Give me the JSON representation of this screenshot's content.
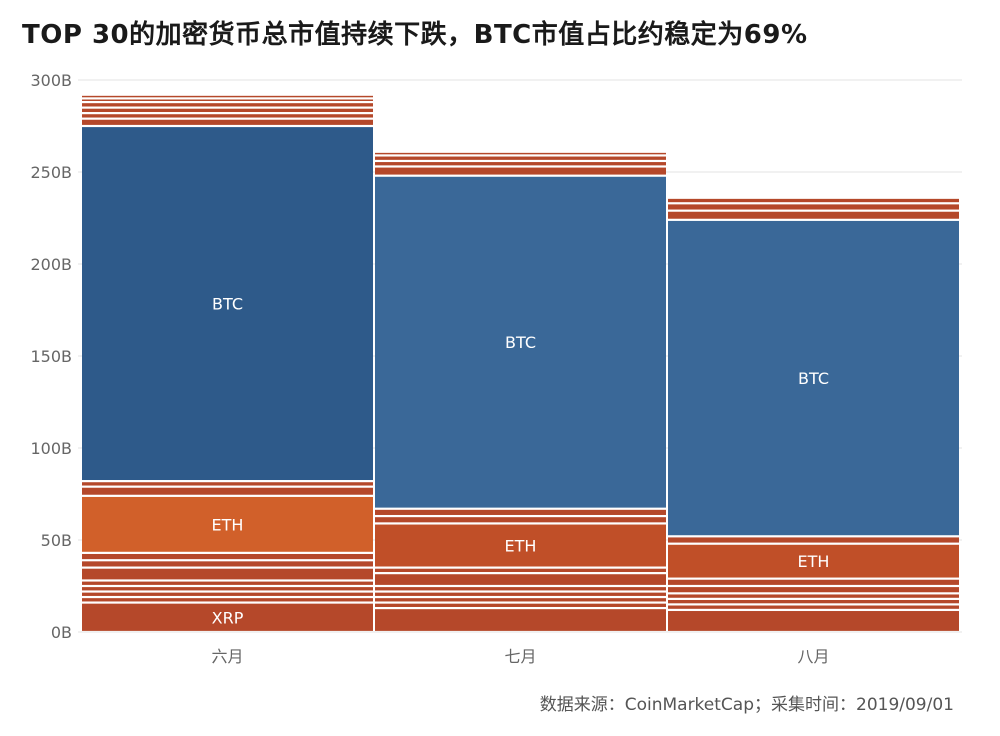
{
  "title": "TOP 30的加密货币总市值持续下跌，BTC市值占比约稳定为69%",
  "source": "数据来源：CoinMarketCap；采集时间：2019/09/01",
  "colors": {
    "btc_fill": "#2e5a8a",
    "eth_fill": "#d1602a",
    "other_fill": "#b5482a",
    "grid": "#e3e3e3",
    "axis_text": "#666666"
  },
  "chart_data": {
    "type": "bar",
    "subtype": "stacked-mekko",
    "yaxis": {
      "ticks": [
        "0B",
        "50B",
        "100B",
        "150B",
        "200B",
        "250B",
        "300B"
      ],
      "values": [
        0,
        50,
        100,
        150,
        200,
        250,
        300
      ],
      "ylim": [
        0,
        300
      ]
    },
    "categories": [
      "六月",
      "七月",
      "八月"
    ],
    "columns": [
      {
        "category": "六月",
        "total": 293,
        "btc_color": "#2e5a8a",
        "eth_color": "#d1602a",
        "segments": [
          {
            "name": "XRP",
            "value": 16,
            "label": "XRP",
            "kind": "other"
          },
          {
            "name": "",
            "value": 3,
            "kind": "other"
          },
          {
            "name": "",
            "value": 3,
            "kind": "other"
          },
          {
            "name": "",
            "value": 3,
            "kind": "other"
          },
          {
            "name": "",
            "value": 3,
            "kind": "other"
          },
          {
            "name": "",
            "value": 7,
            "kind": "other"
          },
          {
            "name": "",
            "value": 4,
            "kind": "other"
          },
          {
            "name": "",
            "value": 4,
            "kind": "other"
          },
          {
            "name": "ETH",
            "value": 31,
            "label": "ETH",
            "kind": "eth"
          },
          {
            "name": "",
            "value": 5,
            "kind": "other"
          },
          {
            "name": "",
            "value": 3,
            "kind": "other"
          },
          {
            "name": "BTC",
            "value": 193,
            "label": "BTC",
            "kind": "btc"
          },
          {
            "name": "",
            "value": 4,
            "kind": "other"
          },
          {
            "name": "",
            "value": 3,
            "kind": "other"
          },
          {
            "name": "",
            "value": 3,
            "kind": "other"
          },
          {
            "name": "",
            "value": 3,
            "kind": "other"
          },
          {
            "name": "",
            "value": 2,
            "kind": "other"
          },
          {
            "name": "",
            "value": 2,
            "kind": "other"
          }
        ]
      },
      {
        "category": "七月",
        "total": 261,
        "btc_color": "#3a6898",
        "eth_color": "#c04f28",
        "segments": [
          {
            "name": "",
            "value": 13,
            "kind": "other"
          },
          {
            "name": "",
            "value": 3,
            "kind": "other"
          },
          {
            "name": "",
            "value": 3,
            "kind": "other"
          },
          {
            "name": "",
            "value": 3,
            "kind": "other"
          },
          {
            "name": "",
            "value": 3,
            "kind": "other"
          },
          {
            "name": "",
            "value": 7,
            "kind": "other"
          },
          {
            "name": "",
            "value": 3,
            "kind": "other"
          },
          {
            "name": "ETH",
            "value": 24,
            "label": "ETH",
            "kind": "eth"
          },
          {
            "name": "",
            "value": 4,
            "kind": "other"
          },
          {
            "name": "",
            "value": 4,
            "kind": "other"
          },
          {
            "name": "BTC",
            "value": 181,
            "label": "BTC",
            "kind": "btc"
          },
          {
            "name": "",
            "value": 5,
            "kind": "other"
          },
          {
            "name": "",
            "value": 3,
            "kind": "other"
          },
          {
            "name": "",
            "value": 3,
            "kind": "other"
          },
          {
            "name": "",
            "value": 2,
            "kind": "other"
          }
        ]
      },
      {
        "category": "八月",
        "total": 236,
        "btc_color": "#3a6898",
        "eth_color": "#c04f28",
        "segments": [
          {
            "name": "",
            "value": 12,
            "kind": "other"
          },
          {
            "name": "",
            "value": 3,
            "kind": "other"
          },
          {
            "name": "",
            "value": 3,
            "kind": "other"
          },
          {
            "name": "",
            "value": 3,
            "kind": "other"
          },
          {
            "name": "",
            "value": 4,
            "kind": "other"
          },
          {
            "name": "",
            "value": 4,
            "kind": "other"
          },
          {
            "name": "ETH",
            "value": 19,
            "label": "ETH",
            "kind": "eth"
          },
          {
            "name": "",
            "value": 4,
            "kind": "other"
          },
          {
            "name": "BTC",
            "value": 172,
            "label": "BTC",
            "kind": "btc"
          },
          {
            "name": "",
            "value": 5,
            "kind": "other"
          },
          {
            "name": "",
            "value": 4,
            "kind": "other"
          },
          {
            "name": "",
            "value": 3,
            "kind": "other"
          }
        ]
      }
    ]
  }
}
